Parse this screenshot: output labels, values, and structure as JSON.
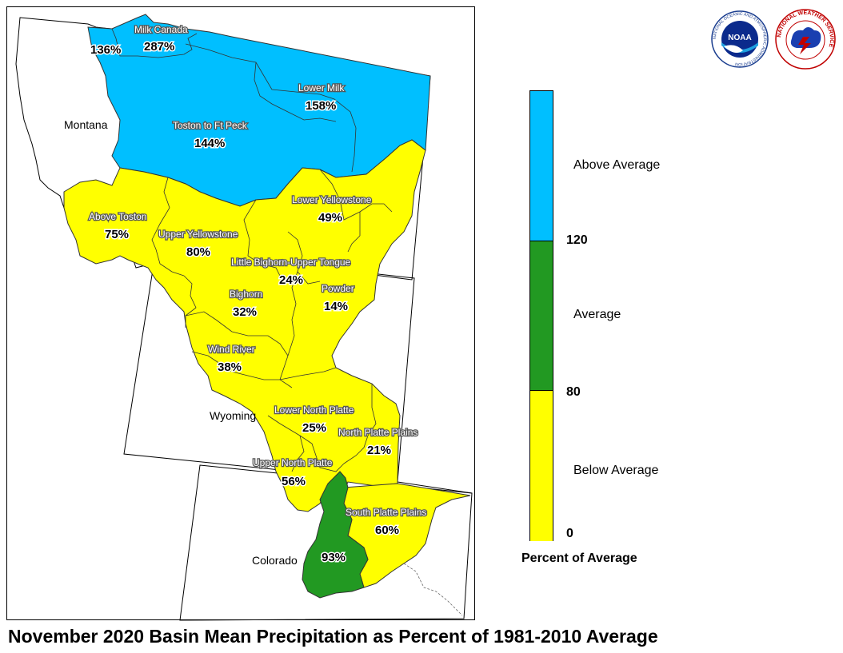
{
  "title": "November 2020 Basin Mean Precipitation as Percent of 1981-2010 Average",
  "states": [
    "Montana",
    "Wyoming",
    "Colorado"
  ],
  "colors": {
    "above": "#00bfff",
    "average": "#229922",
    "below": "#ffff00"
  },
  "basins": [
    {
      "name": "",
      "percent": "136%"
    },
    {
      "name": "Milk Canada",
      "percent": "287%"
    },
    {
      "name": "Lower Milk",
      "percent": "158%"
    },
    {
      "name": "Toston to Ft Peck",
      "percent": "144%"
    },
    {
      "name": "Above Toston",
      "percent": "75%"
    },
    {
      "name": "Lower Yellowstone",
      "percent": "49%"
    },
    {
      "name": "Upper Yellowstone",
      "percent": "80%"
    },
    {
      "name": "Little Bighorn-Upper Tongue",
      "percent": "24%"
    },
    {
      "name": "Bighorn",
      "percent": "32%"
    },
    {
      "name": "Powder",
      "percent": "14%"
    },
    {
      "name": "Wind River",
      "percent": "38%"
    },
    {
      "name": "Lower North Platte",
      "percent": "25%"
    },
    {
      "name": "North Platte Plains",
      "percent": "21%"
    },
    {
      "name": "Upper North Platte",
      "percent": "56%"
    },
    {
      "name": "South Platte Plains",
      "percent": "60%"
    },
    {
      "name": "",
      "percent": "93%"
    }
  ],
  "legend": {
    "title": "Percent of Average",
    "categories": [
      {
        "label": "Above Average",
        "color": "#00bfff"
      },
      {
        "label": "Average",
        "color": "#229922"
      },
      {
        "label": "Below Average",
        "color": "#ffff00"
      }
    ],
    "ticks": [
      "120",
      "80",
      "0"
    ]
  },
  "logos": {
    "noaa": {
      "label": "NOAA",
      "ring_text": "NATIONAL OCEANIC AND ATMOSPHERIC ADMINISTRATION"
    },
    "nws": {
      "ring_text": "NATIONAL WEATHER SERVICE"
    }
  }
}
